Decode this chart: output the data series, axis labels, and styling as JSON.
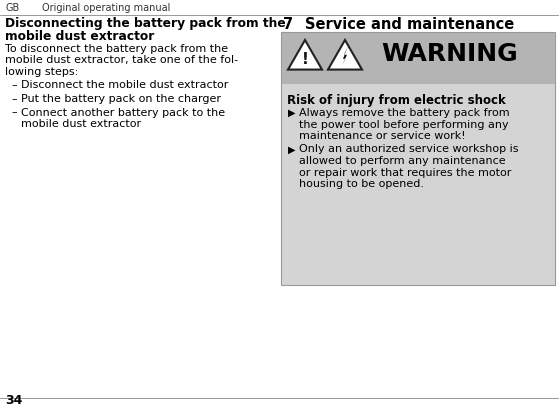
{
  "bg_color": "#ffffff",
  "header_text_gb": "GB",
  "header_text_manual": "Original operating manual",
  "page_number": "34",
  "left_col": {
    "heading_line1": "Disconnecting the battery pack from the",
    "heading_line2": "mobile dust extractor",
    "body_lines": [
      "To disconnect the battery pack from the",
      "mobile dust extractor, take one of the fol-",
      "lowing steps:"
    ],
    "bullet_items": [
      [
        "Disconnect the mobile dust extractor"
      ],
      [
        "Put the battery pack on the charger"
      ],
      [
        "Connect another battery pack to the",
        "mobile dust extractor"
      ]
    ]
  },
  "right_col": {
    "section_num": "7",
    "section_title": "Service and maintenance",
    "warning_header_bg": "#b4b4b4",
    "warning_body_bg": "#d4d4d4",
    "warning_title": "WARNING",
    "warning_subtitle": "Risk of injury from electric shock",
    "bullet1_lines": [
      "Always remove the battery pack from",
      "the power tool before performing any",
      "maintenance or service work!"
    ],
    "bullet2_lines": [
      "Only an authorized service workshop is",
      "allowed to perform any maintenance",
      "or repair work that requires the motor",
      "housing to be opened."
    ]
  }
}
